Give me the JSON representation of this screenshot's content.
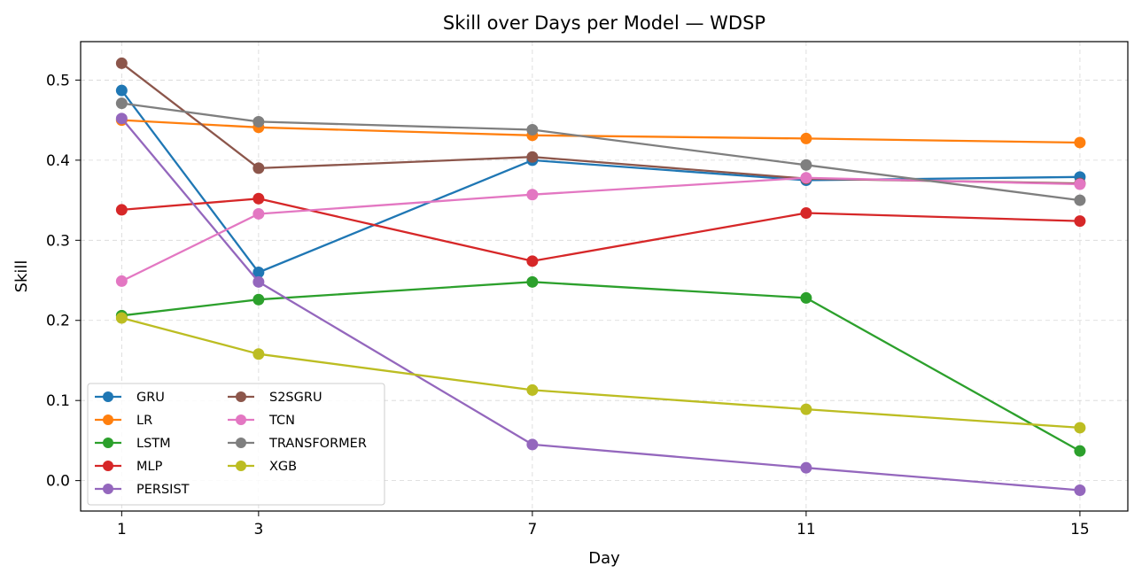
{
  "chart_data": {
    "type": "line",
    "title": "Skill over Days per Model — WDSP",
    "xlabel": "Day",
    "ylabel": "Skill",
    "x": [
      1,
      3,
      7,
      11,
      15
    ],
    "xticks": [
      "1",
      "3",
      "7",
      "11",
      "15"
    ],
    "xlim": [
      0.4,
      15.7
    ],
    "yticks": [
      0.0,
      0.1,
      0.2,
      0.3,
      0.4,
      0.5
    ],
    "ytick_labels": [
      "0.0",
      "0.1",
      "0.2",
      "0.3",
      "0.4",
      "0.5"
    ],
    "ylim": [
      -0.038,
      0.548
    ],
    "grid": true,
    "legend_position": "lower-left",
    "series": [
      {
        "name": "GRU",
        "color": "#1f77b4",
        "values": [
          0.487,
          0.26,
          0.4,
          0.375,
          0.379
        ]
      },
      {
        "name": "LR",
        "color": "#ff7f0e",
        "values": [
          0.45,
          0.441,
          0.431,
          0.427,
          0.422
        ]
      },
      {
        "name": "LSTM",
        "color": "#2ca02c",
        "values": [
          0.206,
          0.226,
          0.248,
          0.228,
          0.037
        ]
      },
      {
        "name": "MLP",
        "color": "#d62728",
        "values": [
          0.338,
          0.352,
          0.274,
          0.334,
          0.324
        ]
      },
      {
        "name": "PERSIST",
        "color": "#9467bd",
        "values": [
          0.452,
          0.248,
          0.045,
          0.016,
          -0.012
        ]
      },
      {
        "name": "S2SGRU",
        "color": "#8c564b",
        "values": [
          0.521,
          0.39,
          0.404,
          0.377,
          0.371
        ]
      },
      {
        "name": "TCN",
        "color": "#e377c2",
        "values": [
          0.249,
          0.333,
          0.357,
          0.378,
          0.37
        ]
      },
      {
        "name": "TRANSFORMER",
        "color": "#7f7f7f",
        "values": [
          0.471,
          0.448,
          0.438,
          0.394,
          0.35
        ]
      },
      {
        "name": "XGB",
        "color": "#bcbd22",
        "values": [
          0.203,
          0.158,
          0.113,
          0.089,
          0.066
        ]
      }
    ]
  }
}
